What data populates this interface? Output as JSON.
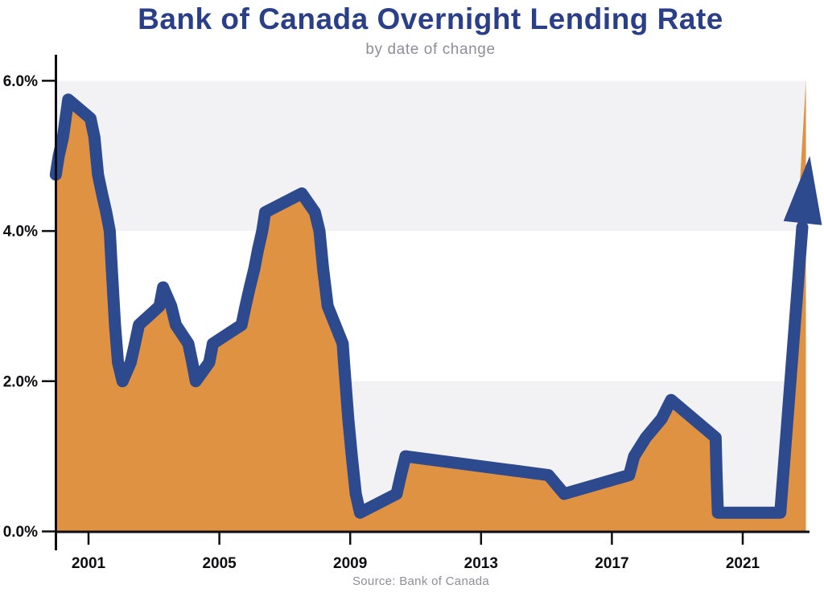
{
  "header": {
    "title": "Bank of Canada Overnight Lending Rate",
    "subtitle": "by date of change"
  },
  "footer": {
    "source": "Source: Bank of Canada"
  },
  "colors": {
    "line_blue": "#2e4a8f",
    "fill_orange": "#e09243",
    "band_gray": "#f2f2f4",
    "title_navy": "#2b3f88",
    "subtitle_gray": "#8e8e9a",
    "source_gray": "#8e8e99",
    "axis_black": "#0d0d12",
    "page_bg": "#ffffff"
  },
  "chart_data": {
    "type": "area",
    "title": "Bank of Canada Overnight Lending Rate",
    "subtitle": "by date of change",
    "source": "Source: Bank of Canada",
    "xlabel": "",
    "ylabel": "",
    "xlim": [
      2000,
      2023.1
    ],
    "ylim": [
      0,
      6.35
    ],
    "grid": "alternating horizontal bands",
    "legend": "none",
    "x_ticks": [
      {
        "year": 2001,
        "label": "2001"
      },
      {
        "year": 2005,
        "label": "2005"
      },
      {
        "year": 2009,
        "label": "2009"
      },
      {
        "year": 2013,
        "label": "2013"
      },
      {
        "year": 2017,
        "label": "2017"
      },
      {
        "year": 2021,
        "label": "2021"
      }
    ],
    "y_ticks": [
      {
        "rate": 0,
        "label": "0.0%"
      },
      {
        "rate": 2,
        "label": "2.0%"
      },
      {
        "rate": 4,
        "label": "4.0%"
      },
      {
        "rate": 6,
        "label": "6.0%"
      }
    ],
    "shaded_bands_pct": [
      [
        0,
        2
      ],
      [
        4,
        6
      ]
    ],
    "points": [
      [
        2000.0,
        4.75
      ],
      [
        2000.09,
        5.0
      ],
      [
        2000.22,
        5.25
      ],
      [
        2000.38,
        5.75
      ],
      [
        2001.06,
        5.5
      ],
      [
        2001.18,
        5.25
      ],
      [
        2001.29,
        4.75
      ],
      [
        2001.41,
        4.5
      ],
      [
        2001.54,
        4.25
      ],
      [
        2001.65,
        4.0
      ],
      [
        2001.71,
        3.5
      ],
      [
        2001.81,
        2.75
      ],
      [
        2001.9,
        2.25
      ],
      [
        2002.04,
        2.0
      ],
      [
        2002.29,
        2.25
      ],
      [
        2002.42,
        2.5
      ],
      [
        2002.54,
        2.75
      ],
      [
        2003.17,
        3.0
      ],
      [
        2003.28,
        3.25
      ],
      [
        2003.53,
        3.0
      ],
      [
        2003.67,
        2.75
      ],
      [
        2004.05,
        2.5
      ],
      [
        2004.17,
        2.25
      ],
      [
        2004.28,
        2.0
      ],
      [
        2004.69,
        2.25
      ],
      [
        2004.8,
        2.5
      ],
      [
        2005.68,
        2.75
      ],
      [
        2005.8,
        3.0
      ],
      [
        2005.93,
        3.25
      ],
      [
        2006.07,
        3.5
      ],
      [
        2006.18,
        3.75
      ],
      [
        2006.31,
        4.0
      ],
      [
        2006.4,
        4.25
      ],
      [
        2007.52,
        4.5
      ],
      [
        2007.92,
        4.25
      ],
      [
        2008.06,
        4.0
      ],
      [
        2008.17,
        3.5
      ],
      [
        2008.31,
        3.0
      ],
      [
        2008.77,
        2.5
      ],
      [
        2008.81,
        2.25
      ],
      [
        2008.94,
        1.5
      ],
      [
        2009.05,
        1.0
      ],
      [
        2009.17,
        0.5
      ],
      [
        2009.3,
        0.25
      ],
      [
        2010.42,
        0.5
      ],
      [
        2010.55,
        0.75
      ],
      [
        2010.69,
        1.0
      ],
      [
        2015.06,
        0.75
      ],
      [
        2015.54,
        0.5
      ],
      [
        2017.53,
        0.75
      ],
      [
        2017.68,
        1.0
      ],
      [
        2018.04,
        1.25
      ],
      [
        2018.52,
        1.5
      ],
      [
        2018.81,
        1.75
      ],
      [
        2020.17,
        1.25
      ],
      [
        2020.2,
        0.75
      ],
      [
        2020.24,
        0.25
      ],
      [
        2022.15,
        0.25
      ]
    ],
    "arrow_ending": {
      "rise_start": {
        "year": 2022.15,
        "rate": 0.25
      },
      "line_end": {
        "year": 2022.82,
        "rate": 4.05
      },
      "fill_end": {
        "year": 2022.93,
        "rate": 6.0
      },
      "tip": {
        "year": 2023.05,
        "rate": 5.0
      }
    }
  }
}
